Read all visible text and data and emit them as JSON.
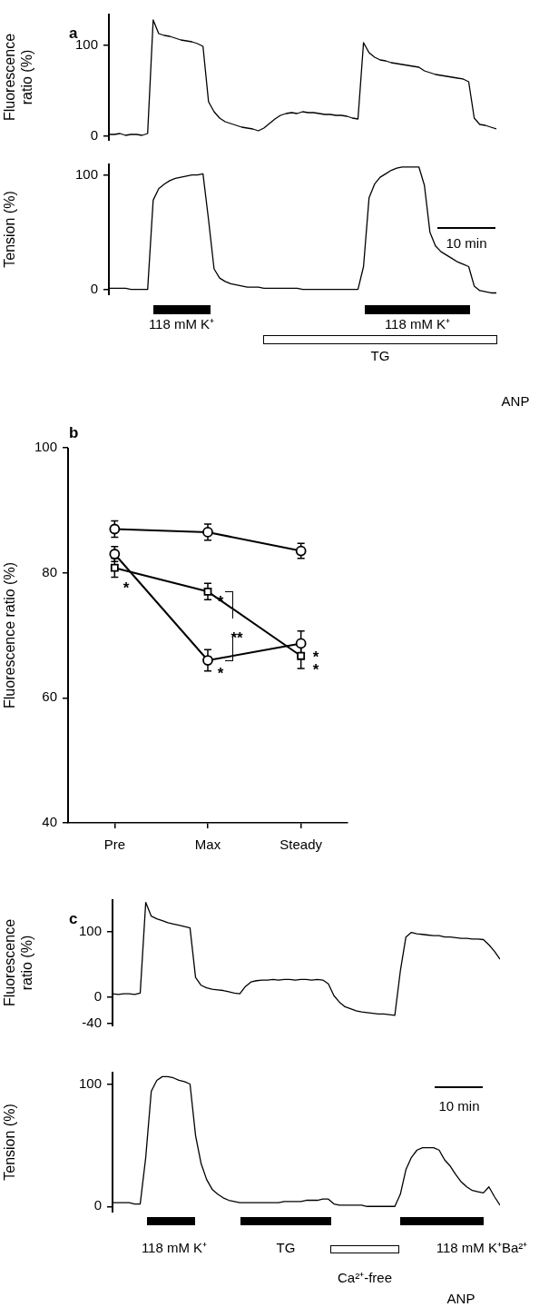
{
  "chart_data": [
    {
      "type": "line",
      "title": "a",
      "ylabel": "Fluorescence ratio (%)",
      "ylim": [
        -5,
        135
      ],
      "yticks": [
        0,
        100
      ],
      "tick_labels": "y",
      "marker": "none",
      "color": "#000000",
      "categories": [
        null,
        null,
        null,
        null,
        null,
        null,
        null,
        null,
        null,
        null,
        null,
        null,
        null,
        null,
        null,
        null,
        null,
        null,
        null,
        null,
        null,
        null,
        null,
        null,
        null,
        null,
        null,
        null,
        null,
        null,
        null,
        null,
        null,
        null,
        null,
        null,
        null,
        null,
        null,
        null,
        null,
        null,
        null,
        null,
        null,
        null,
        null,
        null,
        null,
        null,
        null,
        null,
        null,
        null,
        null,
        null,
        null,
        null,
        null,
        null,
        null,
        null,
        null,
        null,
        null,
        null,
        null,
        null,
        null,
        null,
        null
      ],
      "values": [
        2,
        2,
        3,
        1,
        2,
        2,
        1,
        3,
        128,
        113,
        111,
        110,
        108,
        106,
        105,
        104,
        102,
        99,
        38,
        27,
        20,
        16,
        14,
        12,
        10,
        9,
        8,
        6,
        9,
        14,
        19,
        23,
        25,
        26,
        25,
        27,
        26,
        26,
        25,
        24,
        24,
        23,
        23,
        22,
        20,
        19,
        103,
        92,
        87,
        84,
        83,
        81,
        80,
        79,
        78,
        77,
        76,
        72,
        70,
        68,
        67,
        66,
        65,
        64,
        63,
        60,
        20,
        13,
        12,
        10,
        8
      ]
    },
    {
      "type": "line",
      "ylabel": "Tension (%)",
      "ylim": [
        -5,
        110
      ],
      "yticks": [
        0,
        100
      ],
      "tick_labels": "y",
      "marker": "none",
      "color": "#000000",
      "categories": [
        null,
        null,
        null,
        null,
        null,
        null,
        null,
        null,
        null,
        null,
        null,
        null,
        null,
        null,
        null,
        null,
        null,
        null,
        null,
        null,
        null,
        null,
        null,
        null,
        null,
        null,
        null,
        null,
        null,
        null,
        null,
        null,
        null,
        null,
        null,
        null,
        null,
        null,
        null,
        null,
        null,
        null,
        null,
        null,
        null,
        null,
        null,
        null,
        null,
        null,
        null,
        null,
        null,
        null,
        null,
        null,
        null,
        null,
        null,
        null,
        null,
        null,
        null,
        null,
        null,
        null,
        null,
        null,
        null,
        null,
        null
      ],
      "values": [
        1,
        1,
        1,
        1,
        0,
        0,
        0,
        0,
        78,
        88,
        92,
        95,
        97,
        98,
        99,
        100,
        100,
        101,
        61,
        18,
        10,
        7,
        5,
        4,
        3,
        2,
        2,
        2,
        1,
        1,
        1,
        1,
        1,
        1,
        1,
        0,
        0,
        0,
        0,
        0,
        0,
        0,
        0,
        0,
        0,
        0,
        20,
        80,
        92,
        98,
        101,
        104,
        106,
        107,
        107,
        107,
        107,
        91,
        50,
        38,
        33,
        30,
        27,
        24,
        22,
        20,
        3,
        -1,
        -2,
        -3,
        -3
      ],
      "annotations": [
        "118 mM K⁺",
        "118 mM K⁺",
        "TG",
        "ANP",
        "10 min"
      ]
    },
    {
      "type": "line",
      "title": "b",
      "ylabel": "Fluorescence ratio (%)",
      "categories": [
        "Pre",
        "Max",
        "Steady"
      ],
      "ylim": [
        40,
        100
      ],
      "yticks": [
        40,
        60,
        80,
        100
      ],
      "series": [
        {
          "color": "#000000",
          "marker": "circle",
          "values": [
            87,
            86.5,
            83.5
          ],
          "errors": [
            1.3,
            1.3,
            1.2
          ]
        },
        {
          "color": "#000000",
          "marker": "circle",
          "values": [
            83,
            66,
            68.7
          ],
          "errors": [
            1.2,
            1.7,
            2
          ]
        },
        {
          "color": "#000000",
          "marker": "square",
          "values": [
            80.8,
            77,
            66.7
          ],
          "errors": [
            1.5,
            1.3,
            2
          ]
        }
      ],
      "annotations": [
        "*",
        "*",
        "**",
        "*",
        "*",
        "*"
      ]
    },
    {
      "type": "line",
      "title": "c",
      "ylabel": "Fluorescence ratio (%)",
      "ylim": [
        -45,
        150
      ],
      "yticks": [
        -40,
        0,
        100
      ],
      "tick_labels": "y",
      "marker": "none",
      "color": "#000000",
      "categories": [
        null,
        null,
        null,
        null,
        null,
        null,
        null,
        null,
        null,
        null,
        null,
        null,
        null,
        null,
        null,
        null,
        null,
        null,
        null,
        null,
        null,
        null,
        null,
        null,
        null,
        null,
        null,
        null,
        null,
        null,
        null,
        null,
        null,
        null,
        null,
        null,
        null,
        null,
        null,
        null,
        null,
        null,
        null,
        null,
        null,
        null,
        null,
        null,
        null,
        null,
        null,
        null,
        null,
        null,
        null,
        null,
        null,
        null,
        null,
        null,
        null,
        null,
        null,
        null,
        null,
        null,
        null,
        null,
        null,
        null,
        null
      ],
      "values": [
        5,
        4,
        5,
        5,
        4,
        6,
        145,
        124,
        120,
        117,
        114,
        112,
        110,
        108,
        106,
        30,
        18,
        14,
        12,
        11,
        10,
        8,
        6,
        5,
        16,
        23,
        25,
        26,
        26,
        27,
        26,
        27,
        27,
        26,
        27,
        27,
        26,
        27,
        26,
        20,
        2,
        -8,
        -15,
        -18,
        -21,
        -23,
        -24,
        -25,
        -26,
        -26,
        -27,
        -28,
        40,
        92,
        99,
        97,
        96,
        95,
        94,
        94,
        92,
        92,
        91,
        90,
        90,
        89,
        89,
        88,
        80,
        70,
        58
      ]
    },
    {
      "type": "line",
      "ylabel": "Tension (%)",
      "ylim": [
        -5,
        110
      ],
      "yticks": [
        0,
        100
      ],
      "tick_labels": "y",
      "marker": "none",
      "color": "#000000",
      "categories": [
        null,
        null,
        null,
        null,
        null,
        null,
        null,
        null,
        null,
        null,
        null,
        null,
        null,
        null,
        null,
        null,
        null,
        null,
        null,
        null,
        null,
        null,
        null,
        null,
        null,
        null,
        null,
        null,
        null,
        null,
        null,
        null,
        null,
        null,
        null,
        null,
        null,
        null,
        null,
        null,
        null,
        null,
        null,
        null,
        null,
        null,
        null,
        null,
        null,
        null,
        null,
        null,
        null,
        null,
        null,
        null,
        null,
        null,
        null,
        null,
        null,
        null,
        null,
        null,
        null,
        null,
        null,
        null,
        null,
        null,
        null
      ],
      "values": [
        3,
        3,
        3,
        3,
        2,
        2,
        40,
        94,
        103,
        106,
        106,
        105,
        103,
        102,
        100,
        58,
        35,
        22,
        14,
        10,
        7,
        5,
        4,
        3,
        3,
        3,
        3,
        3,
        3,
        3,
        3,
        4,
        4,
        4,
        4,
        5,
        5,
        5,
        6,
        6,
        2,
        1,
        1,
        1,
        1,
        1,
        0,
        0,
        0,
        0,
        0,
        0,
        10,
        30,
        40,
        46,
        48,
        48,
        48,
        46,
        38,
        33,
        26,
        20,
        16,
        13,
        12,
        11,
        16,
        8,
        1
      ],
      "annotations": [
        "118 mM K⁺",
        "TG",
        "Ca²⁺-free",
        "118 mM K⁺Ba²⁺",
        "ANP",
        "10 min"
      ]
    }
  ]
}
